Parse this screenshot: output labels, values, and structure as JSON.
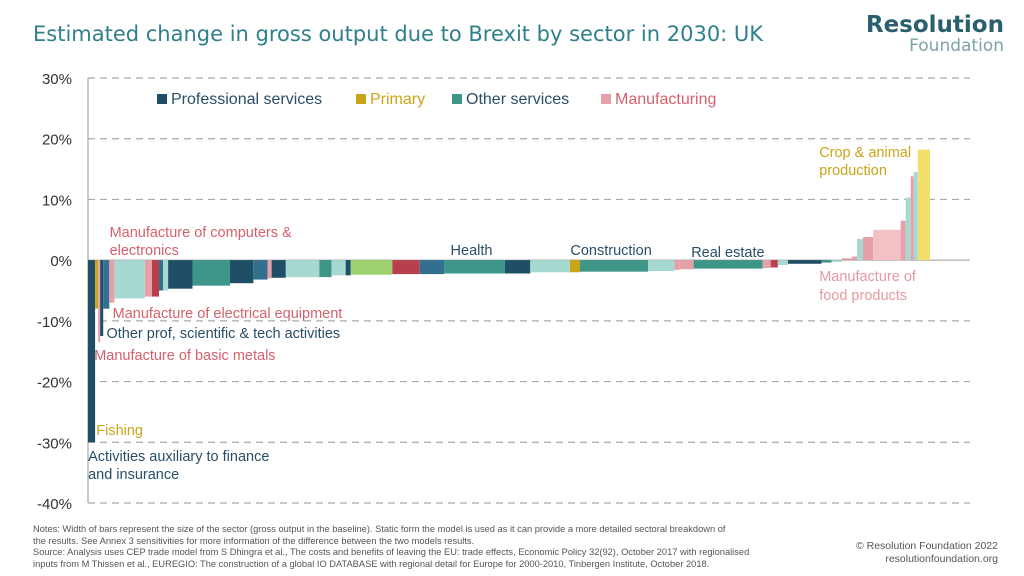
{
  "title": "Estimated change in gross output due to Brexit by sector in 2030: UK",
  "logo": {
    "line1": "Resolution",
    "line2": "Foundation"
  },
  "colors": {
    "professional": "#1f4e66",
    "professional_mid": "#336f8f",
    "primary": "#c9a51a",
    "primary_light": "#f3df6a",
    "other": "#3e9688",
    "other_light": "#a7d9d3",
    "manufacturing": "#e6a0a8",
    "manufacturing_dark": "#b8404c",
    "manufacturing_light": "#f2c1c6",
    "green": "#9fd16e",
    "grid": "#aaaaaa"
  },
  "legend": [
    {
      "label": "Professional services",
      "color": "#1f4e66",
      "text_color": "#2a4e66"
    },
    {
      "label": "Primary",
      "color": "#c9a51a",
      "text_color": "#c9a51a"
    },
    {
      "label": "Other services",
      "color": "#3e9688",
      "text_color": "#2a4e66"
    },
    {
      "label": "Manufacturing",
      "color": "#e6a0a8",
      "text_color": "#d5616d"
    }
  ],
  "chart_data": {
    "type": "bar",
    "ylim": [
      -40,
      30
    ],
    "yticks": [
      30,
      20,
      10,
      0,
      -10,
      -20,
      -30,
      -40
    ],
    "ytick_labels": [
      "30%",
      "20%",
      "10%",
      "0%",
      "-10%",
      "-20%",
      "-30%",
      "-40%"
    ],
    "grid": true,
    "legend_position": "top",
    "bar_width_meaning": "size of sector (gross output in the baseline)",
    "bars": [
      {
        "w": 7,
        "v": -30,
        "c": "professional"
      },
      {
        "w": 3,
        "v": -8,
        "c": "primary"
      },
      {
        "w": 2,
        "v": -13.5,
        "c": "manufacturing"
      },
      {
        "w": 3,
        "v": -12.5,
        "c": "professional"
      },
      {
        "w": 6,
        "v": -8,
        "c": "professional_mid"
      },
      {
        "w": 5,
        "v": -7,
        "c": "manufacturing"
      },
      {
        "w": 30,
        "v": -6.3,
        "c": "other_light"
      },
      {
        "w": 7,
        "v": -6,
        "c": "manufacturing"
      },
      {
        "w": 7,
        "v": -6,
        "c": "manufacturing_dark"
      },
      {
        "w": 4,
        "v": -5,
        "c": "professional_mid"
      },
      {
        "w": 5,
        "v": -5,
        "c": "other_light"
      },
      {
        "w": 24,
        "v": -4.7,
        "c": "professional"
      },
      {
        "w": 37,
        "v": -4.2,
        "c": "other"
      },
      {
        "w": 23,
        "v": -3.8,
        "c": "professional"
      },
      {
        "w": 14,
        "v": -3.2,
        "c": "professional_mid"
      },
      {
        "w": 4,
        "v": -3,
        "c": "manufacturing"
      },
      {
        "w": 14,
        "v": -2.9,
        "c": "professional"
      },
      {
        "w": 33,
        "v": -2.8,
        "c": "other_light"
      },
      {
        "w": 12,
        "v": -2.8,
        "c": "other"
      },
      {
        "w": 14,
        "v": -2.5,
        "c": "other_light"
      },
      {
        "w": 5,
        "v": -2.5,
        "c": "professional"
      },
      {
        "w": 41,
        "v": -2.4,
        "c": "green"
      },
      {
        "w": 27,
        "v": -2.3,
        "c": "manufacturing_dark"
      },
      {
        "w": 24,
        "v": -2.3,
        "c": "professional_mid"
      },
      {
        "w": 60,
        "v": -2.2,
        "c": "other"
      },
      {
        "w": 25,
        "v": -2.2,
        "c": "professional"
      },
      {
        "w": 39,
        "v": -2.0,
        "c": "other_light"
      },
      {
        "w": 10,
        "v": -2.0,
        "c": "primary"
      },
      {
        "w": 67,
        "v": -1.9,
        "c": "other"
      },
      {
        "w": 26,
        "v": -1.8,
        "c": "other_light"
      },
      {
        "w": 5,
        "v": -1.6,
        "c": "manufacturing"
      },
      {
        "w": 14,
        "v": -1.5,
        "c": "manufacturing"
      },
      {
        "w": 68,
        "v": -1.4,
        "c": "other"
      },
      {
        "w": 8,
        "v": -1.3,
        "c": "manufacturing"
      },
      {
        "w": 7,
        "v": -1.2,
        "c": "manufacturing_dark"
      },
      {
        "w": 10,
        "v": -0.8,
        "c": "other_light"
      },
      {
        "w": 33,
        "v": -0.6,
        "c": "professional"
      },
      {
        "w": 10,
        "v": -0.4,
        "c": "other"
      },
      {
        "w": 10,
        "v": -0.3,
        "c": "other_light"
      },
      {
        "w": 10,
        "v": 0.3,
        "c": "manufacturing"
      },
      {
        "w": 5,
        "v": 0.6,
        "c": "manufacturing"
      },
      {
        "w": 6,
        "v": 3.5,
        "c": "other_light"
      },
      {
        "w": 10,
        "v": 3.8,
        "c": "manufacturing"
      },
      {
        "w": 27,
        "v": 5,
        "c": "manufacturing_light"
      },
      {
        "w": 5,
        "v": 6.5,
        "c": "manufacturing"
      },
      {
        "w": 5,
        "v": 10.3,
        "c": "other_light"
      },
      {
        "w": 3,
        "v": 13.8,
        "c": "manufacturing"
      },
      {
        "w": 4,
        "v": 14.5,
        "c": "other_light"
      },
      {
        "w": 12,
        "v": 18.2,
        "c": "primary_light"
      }
    ],
    "annotations": [
      {
        "text": "Manufacture of computers &",
        "color": "#d5616d",
        "ax": 0.107,
        "ay": 232
      },
      {
        "text": "electronics",
        "color": "#d5616d",
        "ax": 0.107,
        "ay": 250
      },
      {
        "text": "Health",
        "color": "#2a4e66",
        "ax": 0.44,
        "ay": 250
      },
      {
        "text": "Construction",
        "color": "#2a4e66",
        "ax": 0.557,
        "ay": 250
      },
      {
        "text": "Real estate",
        "color": "#2a4e66",
        "ax": 0.675,
        "ay": 252
      },
      {
        "text": "Crop & animal",
        "color": "#c9a51a",
        "ax": 0.8,
        "ay": 152
      },
      {
        "text": "production",
        "color": "#c9a51a",
        "ax": 0.8,
        "ay": 170
      },
      {
        "text": "Manufacture of",
        "color": "#e59aa2",
        "ax": 0.8,
        "ay": 276
      },
      {
        "text": "food products",
        "color": "#e59aa2",
        "ax": 0.8,
        "ay": 295
      },
      {
        "text": "Manufacture of electrical equipment",
        "color": "#d5616d",
        "ax": 0.11,
        "ay": 313
      },
      {
        "text": "Other prof, scientific & tech activities",
        "color": "#2a4e66",
        "ax": 0.104,
        "ay": 333
      },
      {
        "text": "Manufacture of basic metals",
        "color": "#d5616d",
        "ax": 0.092,
        "ay": 355
      },
      {
        "text": "Fishing",
        "color": "#c9a51a",
        "ax": 0.094,
        "ay": 430
      },
      {
        "text": "Activities auxiliary to finance",
        "color": "#2a4e66",
        "ax": 0.086,
        "ay": 456
      },
      {
        "text": "and insurance",
        "color": "#2a4e66",
        "ax": 0.086,
        "ay": 474
      }
    ]
  },
  "notes": [
    "Notes: Width of bars represent the size of the sector (gross output in the baseline). Static form the model is used as it can provide a more detailed sectoral breakdown of",
    "the results. See Annex 3 sensitivities for more information of the difference between the two models results.",
    "Source: Analysis uses CEP trade model from S Dhingra et al., The costs and benefits of leaving the EU: trade effects, Economic Policy 32(92), October 2017 with regionalised",
    "inputs from M Thissen et al., EUREGIO: The construction of a global IO DATABASE with regional detail for Europe for 2000-2010, Tinbergen Institute, October 2018."
  ],
  "copyright": "© Resolution Foundation 2022",
  "website": "resolutionfoundation.org"
}
